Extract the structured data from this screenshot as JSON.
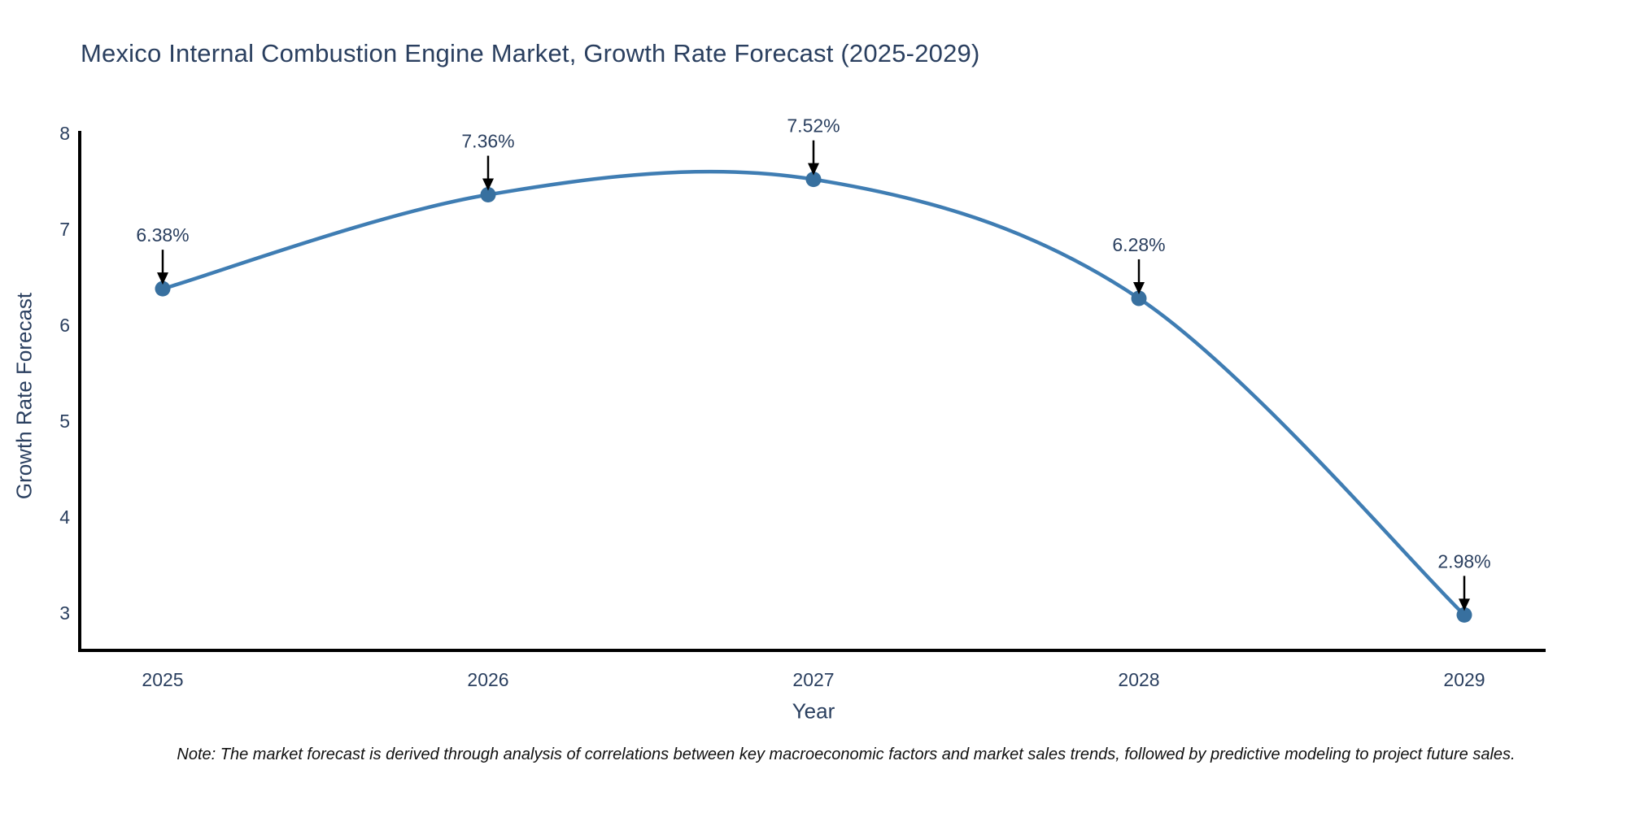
{
  "page": {
    "note": "Note: The market forecast is derived through analysis of correlations between key macroeconomic factors and market sales trends, followed by predictive modeling to project future sales."
  },
  "chart_data": {
    "type": "line",
    "title": "Mexico Internal Combustion Engine Market, Growth Rate Forecast (2025-2029)",
    "xlabel": "Year",
    "ylabel": "Growth Rate Forecast",
    "categories": [
      2025,
      2026,
      2027,
      2028,
      2029
    ],
    "series": [
      {
        "name": "Growth Rate Forecast",
        "values": [
          6.38,
          7.36,
          7.52,
          6.28,
          2.98
        ]
      }
    ],
    "point_labels": [
      "6.38%",
      "7.36%",
      "7.52%",
      "6.28%",
      "2.98%"
    ],
    "x_tick_labels": [
      "2025",
      "2026",
      "2027",
      "2028",
      "2029"
    ],
    "y_tick_labels": [
      "8",
      "7",
      "6",
      "5",
      "4",
      "3"
    ],
    "y_ticks": [
      8,
      7,
      6,
      5,
      4,
      3
    ],
    "ylim": [
      2.6,
      8.0
    ],
    "line_shape": "spline",
    "grid": false,
    "legend": "none",
    "markers": true,
    "annotations": "percent value label with downward black arrow above each data point"
  },
  "colors": {
    "line": "#3f7db3",
    "marker": "#38709f",
    "text": "#2a3f5f",
    "axis": "#000000",
    "arrow": "#000000",
    "note_text": "#111111",
    "background": "#ffffff"
  }
}
